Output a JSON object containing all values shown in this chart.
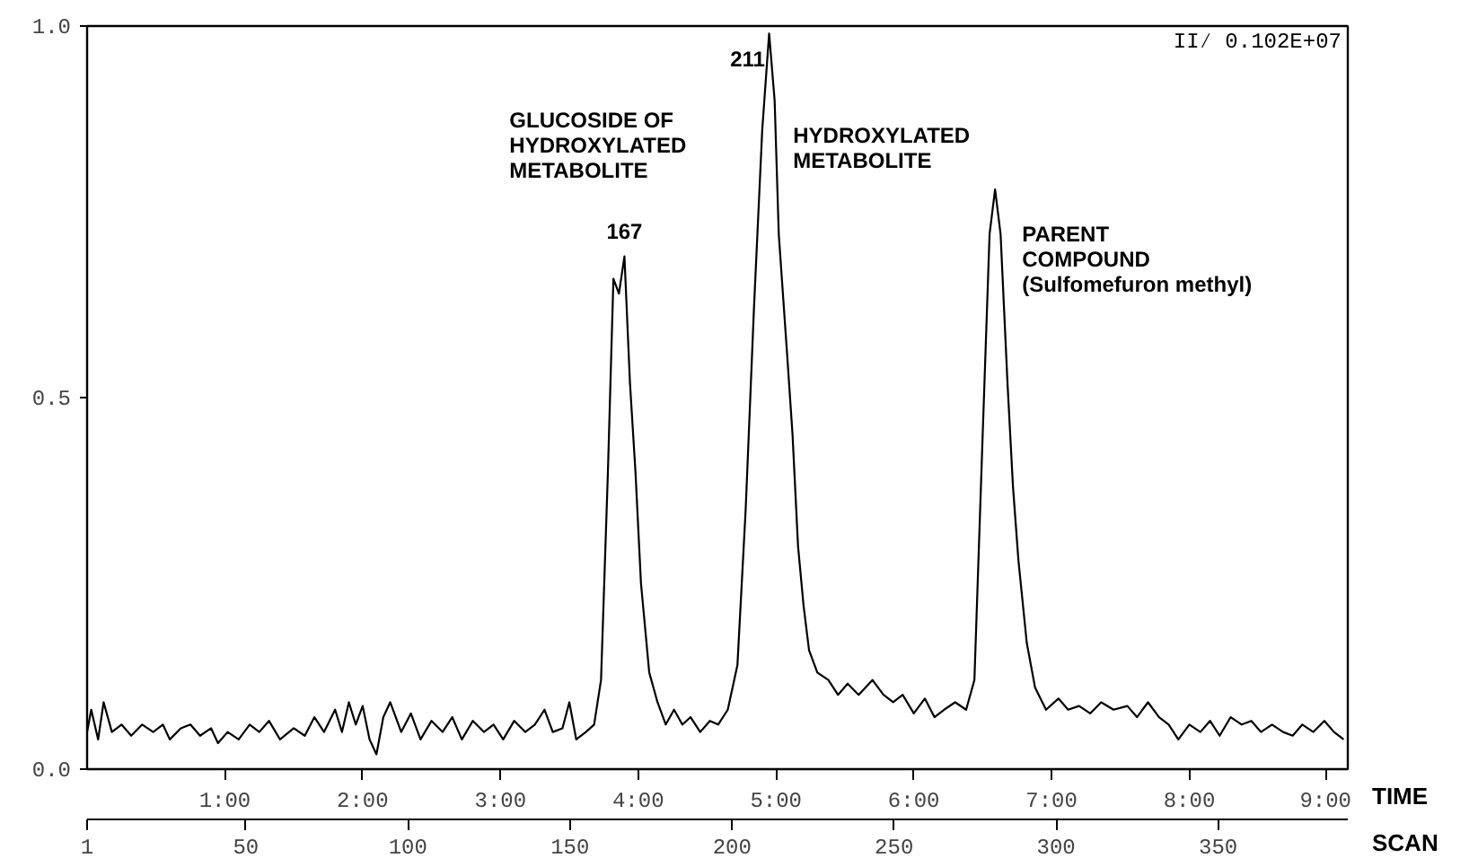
{
  "chart_data": {
    "type": "line",
    "xlabel": "TIME",
    "x2label": "SCAN",
    "x": [
      0.0,
      0.03,
      0.08,
      0.12,
      0.18,
      0.25,
      0.32,
      0.4,
      0.48,
      0.55,
      0.6,
      0.68,
      0.75,
      0.82,
      0.9,
      0.95,
      1.02,
      1.1,
      1.18,
      1.25,
      1.32,
      1.4,
      1.5,
      1.58,
      1.65,
      1.72,
      1.8,
      1.85,
      1.9,
      1.95,
      2.0,
      2.05,
      2.1,
      2.15,
      2.2,
      2.28,
      2.35,
      2.42,
      2.5,
      2.58,
      2.65,
      2.72,
      2.8,
      2.88,
      2.95,
      3.02,
      3.1,
      3.18,
      3.25,
      3.32,
      3.38,
      3.45,
      3.5,
      3.55,
      3.62,
      3.68,
      3.73,
      3.78,
      3.82,
      3.86,
      3.9,
      3.94,
      3.98,
      4.02,
      4.08,
      4.14,
      4.2,
      4.26,
      4.32,
      4.38,
      4.45,
      4.52,
      4.58,
      4.65,
      4.72,
      4.78,
      4.84,
      4.9,
      4.95,
      4.99,
      5.02,
      5.08,
      5.12,
      5.16,
      5.2,
      5.24,
      5.3,
      5.38,
      5.45,
      5.52,
      5.6,
      5.7,
      5.78,
      5.85,
      5.92,
      6.0,
      6.08,
      6.15,
      6.22,
      6.3,
      6.38,
      6.44,
      6.5,
      6.55,
      6.59,
      6.63,
      6.68,
      6.72,
      6.76,
      6.82,
      6.88,
      6.96,
      7.05,
      7.12,
      7.2,
      7.28,
      7.36,
      7.45,
      7.55,
      7.62,
      7.7,
      7.78,
      7.85,
      7.92,
      8.0,
      8.08,
      8.15,
      8.22,
      8.3,
      8.38,
      8.45,
      8.52,
      8.6,
      8.68,
      8.75,
      8.82,
      8.9,
      8.98,
      9.05,
      9.12
    ],
    "series": [
      {
        "color": "#000000",
        "values": [
          0.05,
          0.08,
          0.04,
          0.09,
          0.05,
          0.06,
          0.045,
          0.06,
          0.05,
          0.06,
          0.04,
          0.055,
          0.06,
          0.045,
          0.055,
          0.035,
          0.05,
          0.04,
          0.06,
          0.05,
          0.065,
          0.04,
          0.055,
          0.045,
          0.07,
          0.05,
          0.08,
          0.05,
          0.09,
          0.06,
          0.085,
          0.04,
          0.02,
          0.07,
          0.09,
          0.05,
          0.075,
          0.04,
          0.065,
          0.05,
          0.07,
          0.04,
          0.065,
          0.05,
          0.06,
          0.04,
          0.065,
          0.05,
          0.06,
          0.08,
          0.05,
          0.055,
          0.09,
          0.04,
          0.05,
          0.06,
          0.12,
          0.4,
          0.66,
          0.64,
          0.69,
          0.52,
          0.4,
          0.25,
          0.13,
          0.09,
          0.06,
          0.08,
          0.06,
          0.07,
          0.05,
          0.065,
          0.06,
          0.08,
          0.14,
          0.35,
          0.62,
          0.86,
          0.99,
          0.9,
          0.72,
          0.56,
          0.45,
          0.3,
          0.22,
          0.16,
          0.13,
          0.12,
          0.1,
          0.115,
          0.1,
          0.12,
          0.1,
          0.09,
          0.1,
          0.075,
          0.095,
          0.07,
          0.08,
          0.09,
          0.08,
          0.12,
          0.45,
          0.72,
          0.78,
          0.72,
          0.52,
          0.38,
          0.28,
          0.17,
          0.11,
          0.08,
          0.095,
          0.08,
          0.085,
          0.075,
          0.09,
          0.08,
          0.085,
          0.07,
          0.09,
          0.07,
          0.06,
          0.04,
          0.06,
          0.05,
          0.065,
          0.045,
          0.07,
          0.06,
          0.065,
          0.05,
          0.06,
          0.05,
          0.045,
          0.06,
          0.05,
          0.065,
          0.05,
          0.04
        ]
      }
    ],
    "xlim": [
      0,
      9.15
    ],
    "xticks": [
      {
        "value": 1,
        "label": "1:00"
      },
      {
        "value": 2,
        "label": "2:00"
      },
      {
        "value": 3,
        "label": "3:00"
      },
      {
        "value": 4,
        "label": "4:00"
      },
      {
        "value": 5,
        "label": "5:00"
      },
      {
        "value": 6,
        "label": "6:00"
      },
      {
        "value": 7,
        "label": "7:00"
      },
      {
        "value": 8,
        "label": "8:00"
      },
      {
        "value": 9,
        "label": "9:00"
      }
    ],
    "x2lim": [
      1,
      390
    ],
    "x2ticks": [
      1,
      50,
      100,
      150,
      200,
      250,
      300,
      350
    ],
    "ylim": [
      0,
      1.0
    ],
    "yticks": [
      {
        "value": 0,
        "label": "0.0"
      },
      {
        "value": 0.5,
        "label": "0.5"
      },
      {
        "value": 1.0,
        "label": "1.0"
      }
    ],
    "grid": false,
    "marker": "none",
    "line_style": "solid",
    "annotations": [
      "GLUCOSIDE OF\nHYDROXYLATED\nMETABOLITE",
      {
        "text": "167",
        "x": 3.9,
        "y": 0.69
      },
      {
        "text": "211",
        "x": 4.95,
        "y": 0.99
      },
      "HYDROXYLATED\nMETABOLITE",
      {
        "text": "PARENT\nCOMPOUND\n(Sulfomefuron methyl)",
        "x": 6.59,
        "y": 0.78
      },
      "II⁄ 0.102E+07"
    ]
  }
}
